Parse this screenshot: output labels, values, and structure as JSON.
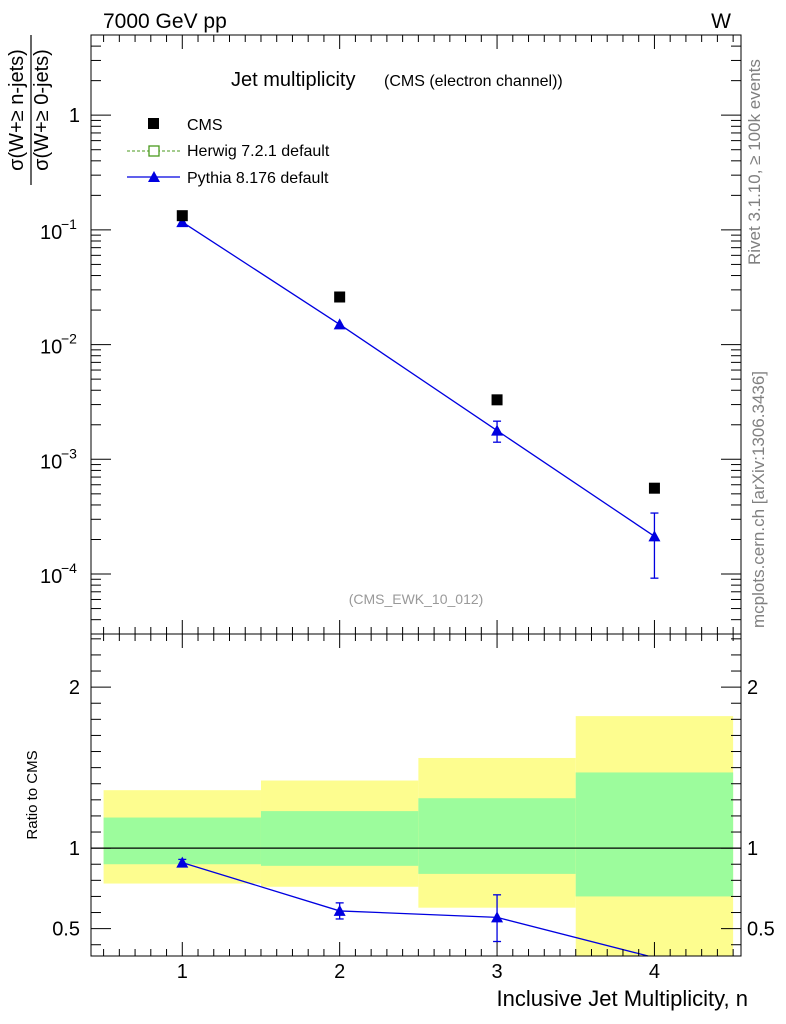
{
  "header": {
    "energy_label": "7000 GeV pp",
    "process_label": "W"
  },
  "side_labels": {
    "rivet": "Rivet 3.1.10, ≥ 100k events",
    "source": "mcplots.cern.ch [arXiv:1306.3436]"
  },
  "chart_data": [
    {
      "type": "scatter",
      "panel": "main",
      "title": "Jet multiplicity",
      "subtitle": "(CMS (electron channel))",
      "analysis_tag": "(CMS_EWK_10_012)",
      "ylabel_num": "σ(W+≥ n-jets)",
      "ylabel_den": "σ(W+≥ 0-jets)",
      "yscale": "log",
      "xlim": [
        0.42,
        4.55
      ],
      "ylim": [
        3e-05,
        5
      ],
      "x": [
        1,
        2,
        3,
        4
      ],
      "yticks": [
        {
          "v": 1,
          "base": "1",
          "exp": ""
        },
        {
          "v": 0.1,
          "base": "10",
          "exp": "−1"
        },
        {
          "v": 0.01,
          "base": "10",
          "exp": "−2"
        },
        {
          "v": 0.001,
          "base": "10",
          "exp": "−3"
        },
        {
          "v": 0.0001,
          "base": "10",
          "exp": "−4"
        }
      ],
      "series": [
        {
          "name": "CMS",
          "marker": "square",
          "color": "#000000",
          "values": [
            0.133,
            0.026,
            0.0033,
            0.00056
          ]
        },
        {
          "name": "Herwig 7.2.1 default",
          "marker": "open-square",
          "color": "#4a9a1e",
          "line": "dashed",
          "values": []
        },
        {
          "name": "Pythia 8.176 default",
          "marker": "triangle",
          "color": "#0000e0",
          "values": [
            0.117,
            0.015,
            0.00178,
            0.000213
          ],
          "err_low": [
            0.112,
            0.0145,
            0.00141,
            9.2e-05
          ],
          "err_high": [
            0.122,
            0.0155,
            0.00215,
            0.00034
          ]
        }
      ],
      "legend_position": "top-left"
    },
    {
      "type": "line",
      "panel": "ratio",
      "ylabel": "Ratio to CMS",
      "xlabel": "Inclusive Jet Multiplicity, n",
      "ylim": [
        0.33,
        2.33
      ],
      "xticks": [
        1,
        2,
        3,
        4
      ],
      "yticks": [
        0.5,
        1,
        2
      ],
      "bands": [
        {
          "x_from": 0.5,
          "x_to": 1.5,
          "inner": [
            0.9,
            1.19
          ],
          "outer": [
            0.78,
            1.36
          ]
        },
        {
          "x_from": 1.5,
          "x_to": 2.5,
          "inner": [
            0.89,
            1.23
          ],
          "outer": [
            0.76,
            1.42
          ]
        },
        {
          "x_from": 2.5,
          "x_to": 3.5,
          "inner": [
            0.84,
            1.31
          ],
          "outer": [
            0.63,
            1.56
          ]
        },
        {
          "x_from": 3.5,
          "x_to": 4.5,
          "inner": [
            0.7,
            1.47
          ],
          "outer": [
            0.33,
            1.82
          ]
        }
      ],
      "band_colors": {
        "inner": "#9cfc9c",
        "outer": "#fdfd8f"
      },
      "reference_line": 1,
      "series": [
        {
          "name": "Pythia 8.176 default",
          "color": "#0000e0",
          "x": [
            1,
            2,
            3,
            4
          ],
          "values": [
            0.91,
            0.61,
            0.57,
            0.32
          ],
          "err_low": [
            0.89,
            0.56,
            0.42,
            null
          ],
          "err_high": [
            0.93,
            0.66,
            0.71,
            null
          ]
        }
      ]
    }
  ]
}
